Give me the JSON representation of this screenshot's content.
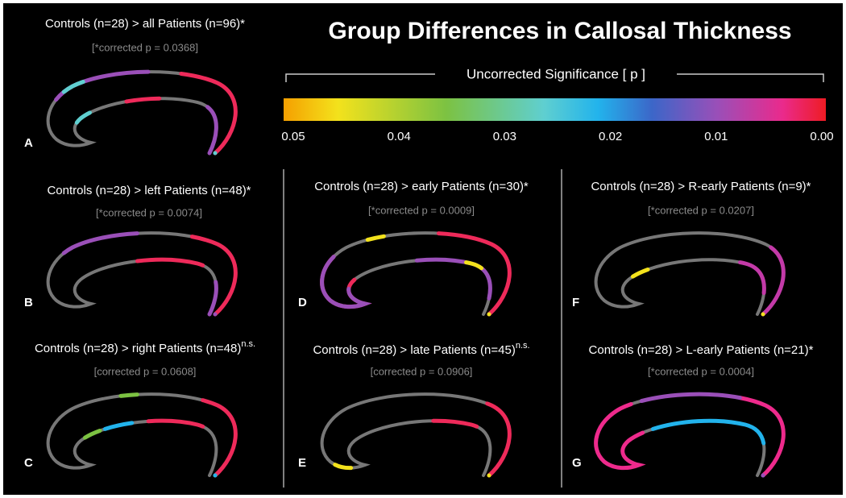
{
  "title": "Group Differences in Callosal Thickness",
  "colorbar": {
    "label": "Uncorrected Significance [ p ]",
    "ticks": [
      "0.05",
      "0.04",
      "0.03",
      "0.02",
      "0.01",
      "0.00"
    ]
  },
  "panels": [
    {
      "letter": "A",
      "title": "Controls (n=28) > all Patients (n=96)*",
      "note": "[*corrected p = 0.0368]"
    },
    {
      "letter": "B",
      "title": "Controls (n=28) > left Patients (n=48)*",
      "note": "[*corrected p = 0.0074]"
    },
    {
      "letter": "C",
      "title": "Controls (n=28) > right Patients (n=48)",
      "superscript": "n.s.",
      "note": "[corrected p = 0.0608]"
    },
    {
      "letter": "D",
      "title": "Controls (n=28) > early Patients (n=30)*",
      "note": "[*corrected p = 0.0009]"
    },
    {
      "letter": "E",
      "title": "Controls (n=28) > late Patients (n=45)",
      "superscript": "n.s.",
      "note": "[corrected p = 0.0906]"
    },
    {
      "letter": "F",
      "title": "Controls (n=28) > R-early Patients (n=9)*",
      "note": "[*corrected p = 0.0207]"
    },
    {
      "letter": "G",
      "title": "Controls (n=28) > L-early Patients (n=21)*",
      "note": "[*corrected p = 0.0004]"
    }
  ]
}
